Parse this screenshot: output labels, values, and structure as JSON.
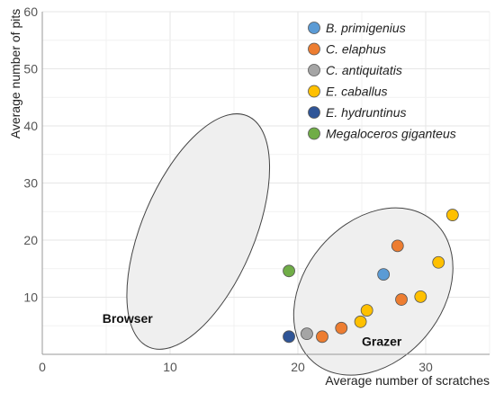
{
  "chart_data": {
    "type": "scatter",
    "xlabel": "Average number of scratches",
    "ylabel": "Average number of pits",
    "xlim": [
      0,
      35
    ],
    "ylim": [
      0,
      60
    ],
    "x_ticks": [
      "0",
      "10",
      "20",
      "30"
    ],
    "y_ticks": [
      "10",
      "20",
      "30",
      "40",
      "50",
      "60"
    ],
    "grid": true,
    "legend_position": "top-right",
    "series": [
      {
        "name": "B. primigenius",
        "color": "#5b9bd5",
        "points": [
          [
            26.7,
            14.0
          ]
        ]
      },
      {
        "name": "C. elaphus",
        "color": "#ed7d31",
        "points": [
          [
            21.9,
            3.1
          ],
          [
            23.4,
            4.6
          ],
          [
            27.8,
            19.0
          ],
          [
            28.1,
            9.6
          ]
        ]
      },
      {
        "name": "C. antiquitatis",
        "color": "#a5a5a5",
        "points": [
          [
            20.7,
            3.6
          ]
        ]
      },
      {
        "name": "E. caballus",
        "color": "#ffc000",
        "points": [
          [
            24.9,
            5.7
          ],
          [
            25.4,
            7.7
          ],
          [
            29.6,
            10.1
          ],
          [
            31.0,
            16.1
          ],
          [
            32.1,
            24.4
          ]
        ]
      },
      {
        "name": "E. hydruntinus",
        "color": "#2f5597",
        "points": [
          [
            19.3,
            3.1
          ]
        ]
      },
      {
        "name": "Megaloceros giganteus",
        "color": "#70ad47",
        "points": [
          [
            19.3,
            14.6
          ]
        ]
      }
    ],
    "regions": [
      {
        "label": "Browser",
        "center": [
          12.2,
          21.5
        ],
        "semi_axes": [
          4.4,
          22.0
        ],
        "angle_deg": 23
      },
      {
        "label": "Grazer",
        "center": [
          25.9,
          11.0
        ],
        "semi_axes": [
          5.4,
          16.2
        ],
        "angle_deg": 40
      }
    ],
    "annotations": [
      "Browser",
      "Grazer"
    ]
  }
}
